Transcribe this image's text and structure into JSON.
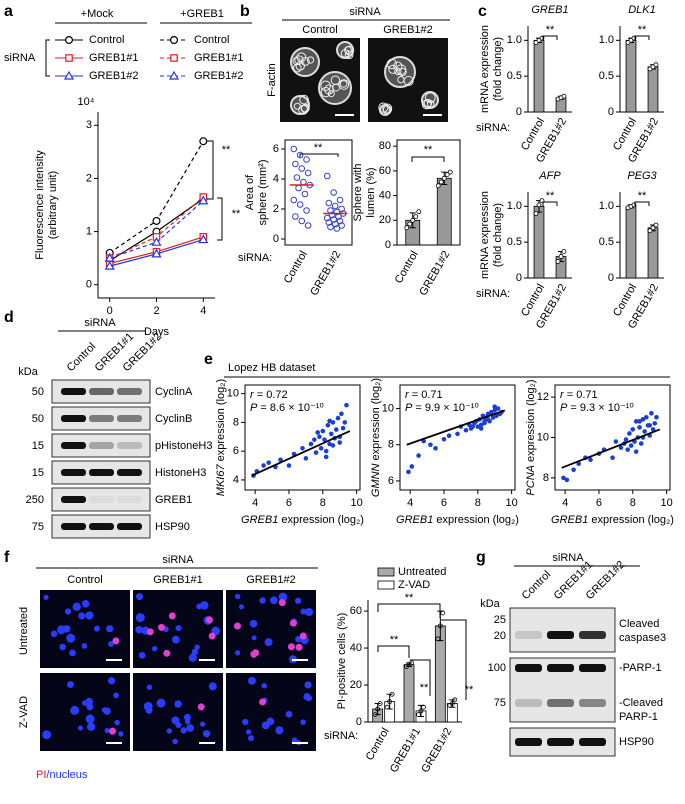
{
  "panel_labels": [
    "a",
    "b",
    "c",
    "d",
    "e",
    "f",
    "g"
  ],
  "panel_b": {
    "header": "siRNA",
    "columns": [
      "Control",
      "GREB1#2"
    ],
    "stain": "F-actin"
  },
  "panel_d": {
    "header": "siRNA",
    "lanes": [
      "Control",
      "GREB1#1",
      "GREB1#2"
    ],
    "unit": "kDa",
    "rows": [
      {
        "kda": 50,
        "protein": "CyclinA"
      },
      {
        "kda": 50,
        "protein": "CyclinB"
      },
      {
        "kda": 15,
        "protein": "pHistoneH3"
      },
      {
        "kda": 15,
        "protein": "HistoneH3"
      },
      {
        "kda": 250,
        "protein": "GREB1"
      },
      {
        "kda": 75,
        "protein": "HSP90"
      }
    ]
  },
  "panel_e": {
    "dataset": "Lopez HB dataset"
  },
  "panel_f": {
    "header": "siRNA",
    "columns": [
      "Control",
      "GREB1#1",
      "GREB1#2"
    ],
    "rows": [
      "Untreated",
      "Z-VAD"
    ],
    "stain": [
      "PI",
      "/nucleus"
    ]
  },
  "panel_g": {
    "header": "siRNA",
    "lanes": [
      "Control",
      "GREB1#1",
      "GREB1#2"
    ],
    "unit": "kDa",
    "markers": [
      25,
      20,
      100,
      75
    ],
    "proteins": [
      [
        "Cleaved",
        "caspase3"
      ],
      [
        "-PARP-1"
      ],
      [
        "-Cleaved",
        "PARP-1"
      ],
      [
        "HSP90"
      ]
    ]
  },
  "chart_data": [
    {
      "type": "line",
      "legend_title": "siRNA",
      "multiplier": "10⁴",
      "ylabel": [
        "Fluorescence intensity",
        "(arbitrary unit)"
      ],
      "xlabel": "Days",
      "x": [
        0,
        2,
        4
      ],
      "xlim": [
        -0.5,
        4.5
      ],
      "xticks": [
        0,
        2,
        4
      ],
      "ylim": [
        -0.25,
        3.25
      ],
      "yticks": [
        0,
        1,
        2,
        3
      ],
      "annotations": [
        "**",
        "**"
      ],
      "groups": [
        {
          "name": "+Mock",
          "dashed": false,
          "series": [
            {
              "name": "Control",
              "color": "#000000",
              "marker": "circle",
              "values": [
                0.45,
                1.0,
                1.62
              ]
            },
            {
              "name": "GREB1#1",
              "color": "#e41a1c",
              "marker": "square",
              "values": [
                0.4,
                0.62,
                0.9
              ]
            },
            {
              "name": "GREB1#2",
              "color": "#2233ee",
              "marker": "triangle",
              "values": [
                0.35,
                0.58,
                0.85
              ]
            }
          ]
        },
        {
          "name": "+GREB1",
          "dashed": true,
          "series": [
            {
              "name": "Control",
              "color": "#000000",
              "marker": "circle",
              "values": [
                0.6,
                1.2,
                2.7
              ]
            },
            {
              "name": "GREB1#1",
              "color": "#e41a1c",
              "marker": "square",
              "values": [
                0.5,
                0.9,
                1.65
              ]
            },
            {
              "name": "GREB1#2",
              "color": "#2233ee",
              "marker": "triangle",
              "values": [
                0.5,
                0.8,
                1.58
              ]
            }
          ]
        }
      ]
    },
    {
      "type": "strip",
      "category_title": "siRNA:",
      "ylabel": [
        "Area of",
        "sphere (mm²)"
      ],
      "categories": [
        "Control",
        "GREB1#2"
      ],
      "ylim": [
        -0.4,
        6.6
      ],
      "yticks": [
        0,
        2,
        4,
        6
      ],
      "point_color": "#3344cc",
      "median_color": "#e41a1c",
      "points": [
        [
          6.0,
          5.6,
          5.3,
          5.0,
          4.7,
          4.4,
          4.1,
          3.8,
          3.6,
          3.4,
          3.0,
          2.6,
          2.3,
          1.9,
          1.5,
          1.2,
          0.9
        ],
        [
          4.2,
          3.1,
          2.6,
          2.4,
          2.2,
          2.0,
          1.9,
          1.8,
          1.7,
          1.6,
          1.5,
          1.4,
          1.3,
          1.2,
          1.1,
          1.0,
          0.9,
          0.8,
          0.7
        ]
      ],
      "medians": [
        3.6,
        1.7
      ],
      "annotations": [
        "**"
      ]
    },
    {
      "type": "bar",
      "ylabel": [
        "Sphere with",
        "lumen (%)"
      ],
      "categories": [
        "Control",
        "GREB1#2"
      ],
      "values": [
        20,
        54
      ],
      "errors": [
        6,
        5
      ],
      "points": [
        [
          14,
          17,
          20,
          23,
          27
        ],
        [
          48,
          51,
          54,
          57,
          59
        ]
      ],
      "color": "#999999",
      "ylim": [
        0,
        85
      ],
      "yticks": [
        0,
        20,
        40,
        60,
        80
      ],
      "annotations": [
        "**"
      ]
    },
    {
      "type": "bar",
      "title": "GREB1",
      "ylabel": [
        "mRNA expression",
        "(fold change)"
      ],
      "category_title": "siRNA:",
      "categories": [
        "Control",
        "GREB1#2"
      ],
      "values": [
        1.0,
        0.2
      ],
      "errors": [
        0.03,
        0.02
      ],
      "points": [
        [
          0.97,
          1.0,
          1.03
        ],
        [
          0.18,
          0.2,
          0.22
        ]
      ],
      "color": "#999999",
      "ylim": [
        0,
        1.2
      ],
      "yticks": [
        0,
        0.5,
        {
          "value": 1,
          "label": "1.0"
        }
      ],
      "annotations": [
        "**"
      ]
    },
    {
      "type": "bar",
      "title": "DLK1",
      "categories": [
        "Control",
        "GREB1#2"
      ],
      "values": [
        1.0,
        0.63
      ],
      "errors": [
        0.03,
        0.03
      ],
      "points": [
        [
          0.97,
          1.0,
          1.03
        ],
        [
          0.6,
          0.63,
          0.66
        ]
      ],
      "color": "#999999",
      "ylim": [
        0,
        1.2
      ],
      "yticks": [
        0,
        0.5,
        {
          "value": 1,
          "label": "1.0"
        }
      ],
      "annotations": [
        "**"
      ]
    },
    {
      "type": "bar",
      "title": "AFP",
      "ylabel": [
        "mRNA expression",
        "(fold change)"
      ],
      "category_title": "siRNA:",
      "categories": [
        "Control",
        "GREB1#2"
      ],
      "values": [
        1.0,
        0.3
      ],
      "errors": [
        0.08,
        0.07
      ],
      "points": [
        [
          0.9,
          1.02,
          1.08
        ],
        [
          0.23,
          0.3,
          0.37
        ]
      ],
      "color": "#999999",
      "ylim": [
        0,
        1.2
      ],
      "yticks": [
        0,
        0.5,
        {
          "value": 1,
          "label": "1.0"
        }
      ],
      "annotations": [
        "**"
      ]
    },
    {
      "type": "bar",
      "title": "PEG3",
      "categories": [
        "Control",
        "GREB1#2"
      ],
      "values": [
        1.0,
        0.7
      ],
      "errors": [
        0.02,
        0.04
      ],
      "points": [
        [
          0.98,
          1.0,
          1.02
        ],
        [
          0.66,
          0.7,
          0.74
        ]
      ],
      "color": "#999999",
      "ylim": [
        0,
        1.2
      ],
      "yticks": [
        0,
        0.5,
        {
          "value": 1,
          "label": "1.0"
        }
      ],
      "annotations": [
        "**"
      ]
    },
    {
      "type": "scatter",
      "stats": [
        [
          "r",
          " = 0.72"
        ],
        [
          "P",
          " = 8.6 × 10⁻¹⁰"
        ]
      ],
      "ylabel_gene": "MKI67",
      "ylabel": " expression (log₂)",
      "xlabel": [
        "GREB1",
        " expression (log₂)"
      ],
      "color": "#1a3fd6",
      "x": [
        3.9,
        4.1,
        4.5,
        4.8,
        5.2,
        5.5,
        6.0,
        6.3,
        6.8,
        7.0,
        7.3,
        7.5,
        7.6,
        7.8,
        7.9,
        8.0,
        8.1,
        8.2,
        8.3,
        8.4,
        8.5,
        8.6,
        8.7,
        8.8,
        8.9,
        9.0,
        9.1,
        9.2,
        9.3,
        9.4,
        8.2,
        8.6,
        7.7,
        9.0,
        8.4
      ],
      "y": [
        4.3,
        4.6,
        5.0,
        5.2,
        4.9,
        5.4,
        5.0,
        5.8,
        6.2,
        5.5,
        6.5,
        6.8,
        5.9,
        7.0,
        6.2,
        7.4,
        6.8,
        6.0,
        7.8,
        6.5,
        7.2,
        8.0,
        6.9,
        7.5,
        8.3,
        7.0,
        8.6,
        7.6,
        8.0,
        9.2,
        5.6,
        6.4,
        7.3,
        6.6,
        8.1
      ],
      "fit": {
        "x": [
          3.8,
          9.6
        ],
        "y": [
          4.3,
          7.4
        ]
      },
      "xlim": [
        3.4,
        10.2
      ],
      "xticks": [
        4,
        6,
        8,
        10
      ],
      "ylim": [
        3.3,
        10.6
      ],
      "yticks": [
        4,
        6,
        8,
        10
      ]
    },
    {
      "type": "scatter",
      "stats": [
        [
          "r",
          " = 0.71"
        ],
        [
          "P",
          " = 9.9 × 10⁻¹⁰"
        ]
      ],
      "ylabel_gene": "GMNN",
      "ylabel": " expression (log₂)",
      "xlabel": [
        "GREB1",
        " expression (log₂)"
      ],
      "color": "#1a3fd6",
      "x": [
        3.9,
        4.1,
        4.5,
        4.8,
        5.2,
        5.5,
        6.0,
        6.3,
        6.8,
        7.0,
        7.3,
        7.5,
        7.6,
        7.8,
        7.9,
        8.0,
        8.1,
        8.2,
        8.3,
        8.4,
        8.5,
        8.6,
        8.7,
        8.8,
        8.9,
        9.0,
        9.1,
        9.2,
        9.3,
        9.4,
        8.2,
        8.6,
        7.7,
        9.0,
        8.4
      ],
      "y": [
        6.5,
        6.8,
        7.4,
        8.2,
        8.0,
        7.8,
        8.3,
        8.5,
        8.6,
        9.0,
        8.8,
        9.1,
        8.9,
        9.2,
        9.3,
        9.0,
        9.4,
        9.1,
        9.6,
        9.2,
        9.5,
        9.7,
        9.3,
        9.8,
        9.5,
        9.9,
        9.6,
        10.0,
        9.7,
        9.8,
        8.9,
        9.4,
        9.0,
        10.1,
        9.3
      ],
      "fit": {
        "x": [
          3.8,
          9.6
        ],
        "y": [
          8.0,
          9.9
        ]
      },
      "xlim": [
        3.4,
        10.2
      ],
      "xticks": [
        4,
        6,
        8,
        10
      ],
      "ylim": [
        5.5,
        11.3
      ],
      "yticks": [
        6,
        8,
        10
      ]
    },
    {
      "type": "scatter",
      "stats": [
        [
          "r",
          " = 0.71"
        ],
        [
          "P",
          " = 9.3 × 10⁻¹⁰"
        ]
      ],
      "ylabel_gene": "PCNA",
      "ylabel": " expression (log₂)",
      "xlabel": [
        "GREB1",
        " expression (log₂)"
      ],
      "color": "#1a3fd6",
      "x": [
        3.9,
        4.1,
        4.5,
        4.8,
        5.2,
        5.5,
        6.0,
        6.3,
        6.8,
        7.0,
        7.3,
        7.5,
        7.6,
        7.8,
        7.9,
        8.0,
        8.1,
        8.2,
        8.3,
        8.4,
        8.5,
        8.6,
        8.7,
        8.8,
        8.9,
        9.0,
        9.1,
        9.2,
        9.3,
        9.4,
        8.2,
        8.6,
        7.7,
        9.0,
        8.4
      ],
      "y": [
        8.0,
        7.9,
        8.4,
        8.7,
        9.0,
        8.9,
        9.2,
        9.4,
        9.0,
        9.8,
        9.5,
        9.7,
        9.9,
        10.2,
        9.6,
        10.4,
        9.8,
        10.8,
        10.0,
        10.5,
        9.7,
        10.9,
        10.3,
        11.0,
        10.6,
        10.1,
        11.2,
        10.4,
        10.7,
        11.0,
        9.3,
        10.0,
        9.4,
        10.6,
        10.8
      ],
      "fit": {
        "x": [
          3.8,
          9.6
        ],
        "y": [
          8.5,
          10.4
        ]
      },
      "xlim": [
        3.4,
        10.2
      ],
      "xticks": [
        4,
        6,
        8,
        10
      ],
      "ylim": [
        7.4,
        12.6
      ],
      "yticks": [
        8,
        10,
        12
      ]
    },
    {
      "type": "groupedbar",
      "category_title": "siRNA:",
      "ylabel": "PI-positive cells (%)",
      "categories": [
        "Control",
        "GREB1#1",
        "GREB1#2"
      ],
      "series": [
        {
          "name": "Untreated",
          "color": "#aaaaaa",
          "values": [
            7,
            31,
            52
          ],
          "errors": [
            3,
            1,
            8
          ],
          "points": [
            [
              4,
              7,
              10
            ],
            [
              30,
              31,
              32
            ],
            [
              45,
              52,
              59
            ]
          ]
        },
        {
          "name": "Z-VAD",
          "color": "#ffffff",
          "values": [
            11,
            6,
            10
          ],
          "errors": [
            4,
            3,
            2
          ],
          "points": [
            [
              8,
              11,
              15
            ],
            [
              4,
              6,
              8
            ],
            [
              9,
              10,
              12
            ]
          ]
        }
      ],
      "ylim": [
        0,
        66
      ],
      "yticks": [
        0,
        20,
        40,
        60
      ],
      "annotations": [
        "**",
        "**",
        "**",
        "**"
      ]
    }
  ]
}
